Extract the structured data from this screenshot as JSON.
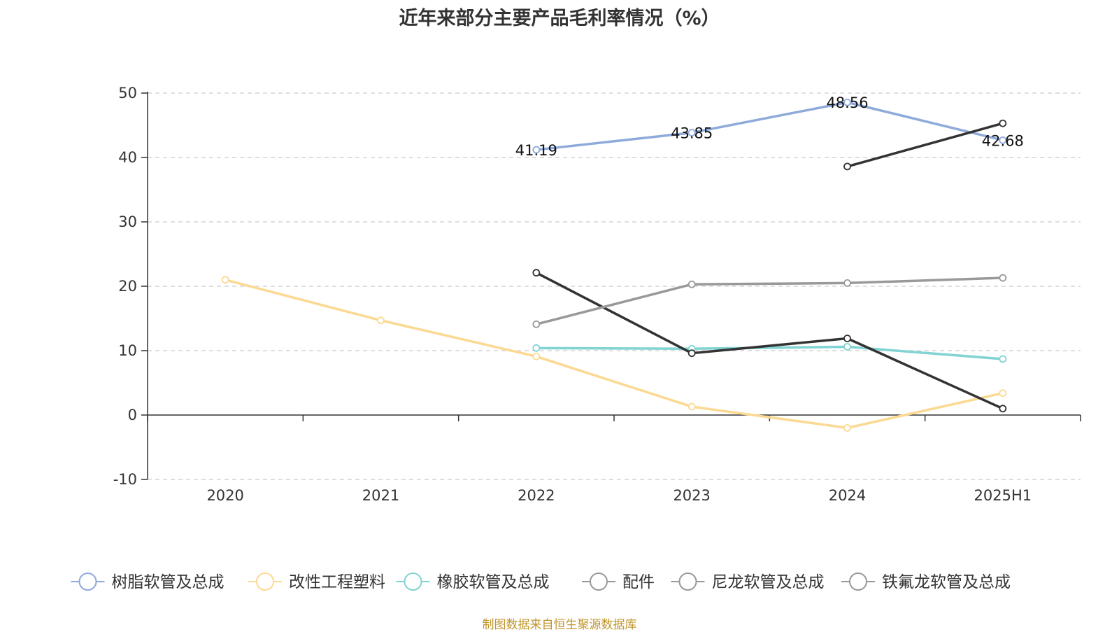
{
  "chart_data": {
    "type": "line",
    "title": "近年来部分主要产品毛利率情况（%）",
    "categories": [
      "2020",
      "2021",
      "2022",
      "2023",
      "2024",
      "2025H1"
    ],
    "ylim": [
      -10,
      50
    ],
    "yticks": [
      -10,
      0,
      10,
      20,
      30,
      40,
      50
    ],
    "grid": true,
    "legend_position": "bottom",
    "series": [
      {
        "name": "树脂软管及总成",
        "color": "#8eaadb",
        "values": [
          null,
          null,
          41.19,
          43.85,
          48.56,
          42.68
        ],
        "labels": true
      },
      {
        "name": "改性工程塑料",
        "color": "#fcd993",
        "values": [
          21.0,
          14.7,
          9.1,
          1.3,
          -2.0,
          3.4
        ],
        "labels": false
      },
      {
        "name": "橡胶软管及总成",
        "color": "#82d3d3",
        "values": [
          null,
          null,
          10.4,
          10.3,
          10.6,
          8.7
        ],
        "labels": false
      },
      {
        "name": "配件",
        "color": "#333333",
        "values": [
          null,
          null,
          22.1,
          9.6,
          11.9,
          1.0
        ],
        "labels": false
      },
      {
        "name": "尼龙软管及总成",
        "color": "#999999",
        "values": [
          null,
          null,
          14.1,
          20.3,
          20.5,
          21.3
        ],
        "labels": false
      },
      {
        "name": "铁氟龙软管及总成",
        "color": "#333333",
        "values": [
          null,
          null,
          null,
          null,
          38.6,
          45.3
        ],
        "labels": false
      }
    ]
  },
  "legend_marker_color": "#999999",
  "source_note": "制图数据来自恒生聚源数据库"
}
